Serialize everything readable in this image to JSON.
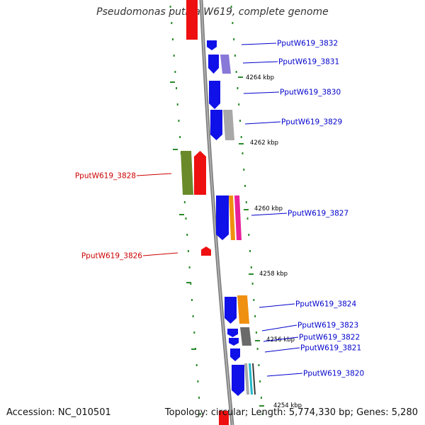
{
  "title": "Pseudomonas putida W619, complete genome",
  "footer": {
    "accession": "Accession: NC_010501",
    "topology": "Topology: circular; Length: 5,774,330 bp; Genes: 5,280"
  },
  "colors": {
    "forward_gene": "#1010e8",
    "reverse_gene": "#ee1010",
    "label_forward": "#0000cc",
    "label_reverse": "#cc0000",
    "backbone": "#808080",
    "ruler_tick": "#2a8a2a",
    "cog_green": "#6a8a2a",
    "cog_purple": "#8878d8",
    "cog_gray": "#a8a8a8",
    "cog_orange": "#f09010",
    "cog_magenta": "#e8209a",
    "cog_darkgray": "#6a6a6a",
    "cog_cyan": "#20b8c8"
  },
  "scale_labels": [
    "4264 kbp",
    "4262 kbp",
    "4260 kbp",
    "4258 kbp",
    "4256 kbp",
    "4254 kbp"
  ],
  "gene_labels_forward": [
    "PputW619_3832",
    "PputW619_3831",
    "PputW619_3830",
    "PputW619_3829",
    "PputW619_3827",
    "PputW619_3824",
    "PputW619_3823",
    "PputW619_3822",
    "PputW619_3821",
    "PputW619_3820"
  ],
  "gene_labels_reverse": [
    "PputW619_3828",
    "PputW619_3826"
  ]
}
